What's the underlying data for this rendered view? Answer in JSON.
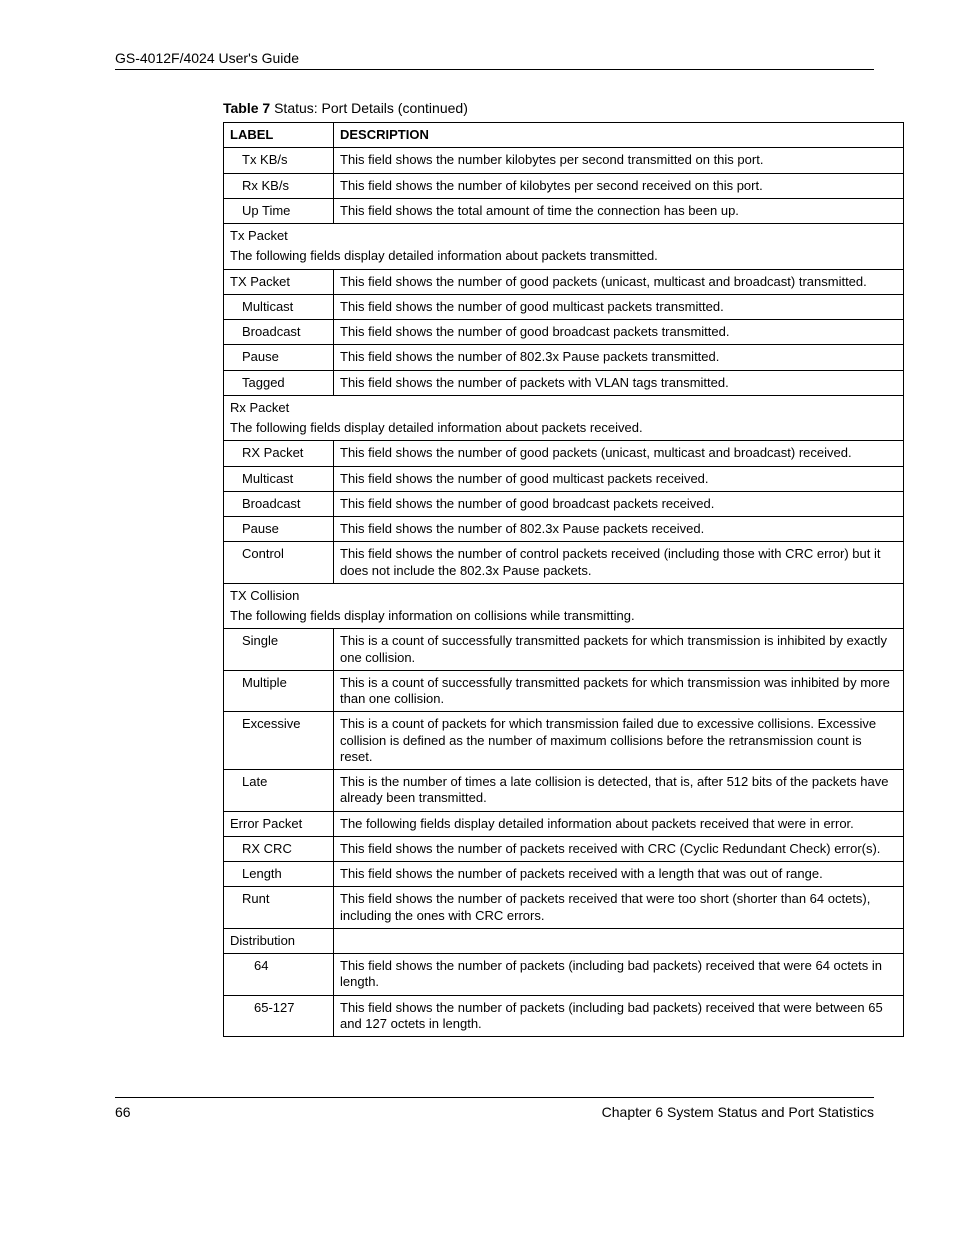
{
  "header": {
    "title": "GS-4012F/4024 User's Guide"
  },
  "caption": {
    "prefix": "Table 7",
    "rest": "   Status: Port Details  (continued)"
  },
  "columns": {
    "label": "LABEL",
    "desc": "DESCRIPTION"
  },
  "rows": {
    "r1": {
      "label": "Tx KB/s",
      "desc": "This field shows the number kilobytes per second transmitted on this port."
    },
    "r2": {
      "label": "Rx KB/s",
      "desc": "This field shows the number of kilobytes per second received on this port."
    },
    "r3": {
      "label": "Up Time",
      "desc": "This field shows the total amount of time the connection has been up."
    },
    "s1": {
      "title": "Tx Packet",
      "sub": "The following fields display detailed information about packets transmitted."
    },
    "r4": {
      "label": "TX Packet",
      "desc": "This field shows the number of good packets (unicast, multicast and broadcast) transmitted."
    },
    "r5": {
      "label": "Multicast",
      "desc": "This field shows the number of good multicast packets transmitted."
    },
    "r6": {
      "label": "Broadcast",
      "desc": "This field shows the number of good broadcast packets transmitted."
    },
    "r7": {
      "label": "Pause",
      "desc": "This field shows the number of 802.3x Pause packets transmitted."
    },
    "r8": {
      "label": "Tagged",
      "desc": "This field shows the number of packets with VLAN tags transmitted."
    },
    "s2": {
      "title": "Rx Packet",
      "sub": "The following fields display detailed information about packets received."
    },
    "r9": {
      "label": "RX Packet",
      "desc": "This field shows the number of good packets (unicast, multicast and broadcast) received."
    },
    "r10": {
      "label": "Multicast",
      "desc": "This field shows the number of good multicast packets received."
    },
    "r11": {
      "label": "Broadcast",
      "desc": "This field shows the number of good broadcast packets received."
    },
    "r12": {
      "label": "Pause",
      "desc": "This field shows the number of 802.3x Pause packets received."
    },
    "r13": {
      "label": "Control",
      "desc": "This field shows the number of control packets received (including those with CRC error) but it does not include the 802.3x Pause packets."
    },
    "s3": {
      "title": "TX Collision",
      "sub": "The following fields display information on collisions while transmitting."
    },
    "r14": {
      "label": "Single",
      "desc": "This is a count of successfully transmitted packets for which transmission is inhibited by exactly one collision."
    },
    "r15": {
      "label": "Multiple",
      "desc": "This is a count of successfully transmitted packets for which transmission was inhibited by more than one collision."
    },
    "r16": {
      "label": "Excessive",
      "desc": "This is a count of packets for which transmission failed due to excessive collisions. Excessive collision is defined as the number of maximum collisions before the retransmission count is reset."
    },
    "r17": {
      "label": "Late",
      "desc": "This is the number of times a late collision is detected, that is, after 512 bits of the packets have already been transmitted."
    },
    "r18": {
      "label": "Error Packet",
      "desc": "The following fields display detailed information about packets received that were in error."
    },
    "r19": {
      "label": "RX CRC",
      "desc": "This field shows the number of packets received with CRC (Cyclic Redundant Check) error(s)."
    },
    "r20": {
      "label": "Length",
      "desc": "This field shows the number of packets received with a length that was out of range."
    },
    "r21": {
      "label": "Runt",
      "desc": "This field shows the number of packets received that were too short (shorter than 64 octets), including the ones with CRC errors."
    },
    "r22": {
      "label": "Distribution",
      "desc": ""
    },
    "r23": {
      "label": "64",
      "desc": "This field shows the number of packets (including bad packets) received that were 64 octets in length."
    },
    "r24": {
      "label": "65-127",
      "desc": "This field shows the number of packets (including bad packets) received that were between 65 and 127 octets in length."
    }
  },
  "footer": {
    "page": "66",
    "chapter": "Chapter 6 System Status and Port Statistics"
  }
}
